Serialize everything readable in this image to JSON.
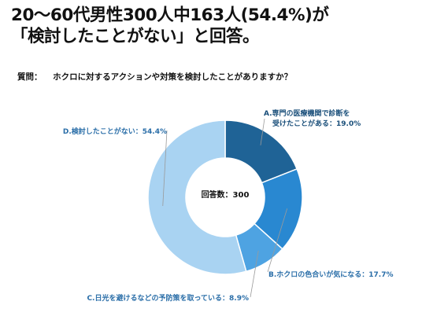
{
  "headline": {
    "line1": "20〜60代男性300人中163人(54.4%)が",
    "line2": "「検討したことがない」と回答。"
  },
  "question": {
    "prefix": "質問：",
    "text": "ホクロに対するアクションや対策を検討したことがありますか？"
  },
  "chart_data": {
    "type": "pie",
    "donut": true,
    "center_label": "回答数：300",
    "categories": [
      "A.専門の医療機関で診断を受けたことがある",
      "B.ホクロの色合いが気になる",
      "C.日光を避けるなどの予防策を取っている",
      "D.検討したことがない"
    ],
    "values": [
      19.0,
      17.7,
      8.9,
      54.4
    ],
    "colors": [
      "#1f6396",
      "#2988d1",
      "#4ea3e2",
      "#a9d3f2"
    ],
    "slice_labels": [
      {
        "line1": "A.専門の医療機関で診断を",
        "line2": "受けたことがある：19.0%"
      },
      {
        "line1": "B.ホクロの色合いが気になる：17.7%",
        "line2": ""
      },
      {
        "line1": "C.日光を避けるなどの予防策を取っている：8.9%",
        "line2": ""
      },
      {
        "line1": "D.検討したことがない：54.4%",
        "line2": ""
      }
    ]
  }
}
